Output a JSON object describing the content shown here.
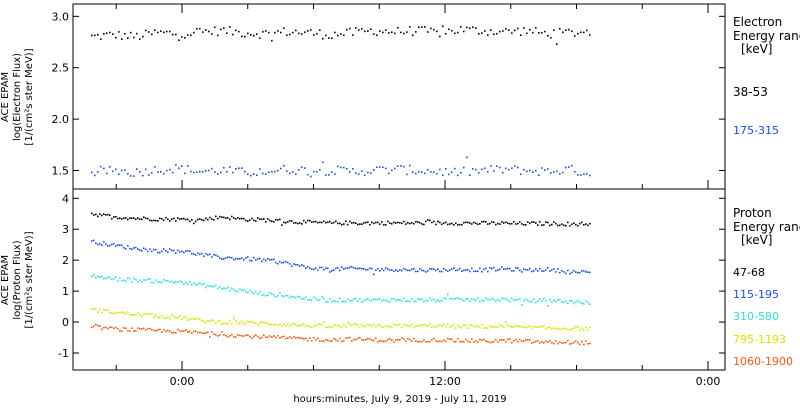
{
  "chart_data": [
    {
      "type": "scatter",
      "panel": "top",
      "instrument_label": "ACE EPAM",
      "ylabel": "log(Electron Flux)",
      "yunits": "[1/(cm²s ster MeV)]",
      "ylim": [
        1.32,
        3.12
      ],
      "yticks": [
        {
          "value": 1.5,
          "label": "1.5"
        },
        {
          "value": 2.0,
          "label": "2.0"
        },
        {
          "value": 2.5,
          "label": "2.5"
        },
        {
          "value": 3.0,
          "label": "3.0"
        }
      ],
      "legend_title": [
        "Electron",
        "Energy range",
        "[keV]"
      ],
      "series": [
        {
          "name": "38-53",
          "color": "#000000",
          "values_approx": [
            2.8,
            2.82,
            2.8,
            2.84,
            2.83,
            2.85,
            2.86,
            2.84,
            2.83,
            2.85,
            2.84,
            2.82,
            2.84,
            2.86,
            2.85,
            2.86,
            2.84,
            2.87,
            2.86,
            2.85,
            2.86,
            2.83,
            2.84,
            2.85
          ]
        },
        {
          "name": "175-315",
          "color": "#1a4fd6",
          "values_approx": [
            1.49,
            1.5,
            1.48,
            1.51,
            1.52,
            1.49,
            1.5,
            1.48,
            1.49,
            1.51,
            1.5,
            1.5,
            1.49,
            1.5,
            1.51,
            1.5,
            1.49,
            1.48,
            1.5,
            1.51,
            1.5,
            1.49,
            1.51,
            1.47
          ]
        }
      ]
    },
    {
      "type": "scatter",
      "panel": "bottom",
      "instrument_label": "ACE EPAM",
      "ylabel": "log(Proton Flux)",
      "yunits": "[1/(cm²s ster MeV)]",
      "ylim": [
        -1.55,
        4.3
      ],
      "yticks": [
        {
          "value": -1,
          "label": "-1"
        },
        {
          "value": 0,
          "label": "0"
        },
        {
          "value": 1,
          "label": "1"
        },
        {
          "value": 2,
          "label": "2"
        },
        {
          "value": 3,
          "label": "3"
        },
        {
          "value": 4,
          "label": "4"
        }
      ],
      "legend_title": [
        "Proton",
        "Energy range",
        "[keV]"
      ],
      "series": [
        {
          "name": "47-68",
          "color": "#000000",
          "values_approx": [
            3.5,
            3.4,
            3.35,
            3.33,
            3.32,
            3.3,
            3.4,
            3.32,
            3.3,
            3.25,
            3.22,
            3.2,
            3.2,
            3.2,
            3.2,
            3.2,
            3.2,
            3.2,
            3.19,
            3.19,
            3.18,
            3.18,
            3.17,
            3.17
          ]
        },
        {
          "name": "115-195",
          "color": "#1a4fd6",
          "values_approx": [
            2.6,
            2.48,
            2.38,
            2.3,
            2.32,
            2.18,
            2.08,
            2.05,
            2.0,
            1.9,
            1.75,
            1.7,
            1.73,
            1.7,
            1.7,
            1.68,
            1.68,
            1.7,
            1.68,
            1.72,
            1.67,
            1.7,
            1.62,
            1.6
          ]
        },
        {
          "name": "310-580",
          "color": "#2ed8d8",
          "values_approx": [
            1.5,
            1.4,
            1.35,
            1.33,
            1.3,
            1.2,
            1.1,
            1.0,
            0.9,
            0.85,
            0.75,
            0.7,
            0.72,
            0.7,
            0.72,
            0.7,
            0.71,
            0.72,
            0.72,
            0.73,
            0.68,
            0.7,
            0.66,
            0.62
          ]
        },
        {
          "name": "795-1193",
          "color": "#d8e000",
          "values_approx": [
            0.4,
            0.32,
            0.25,
            0.2,
            0.15,
            0.05,
            0.0,
            -0.02,
            -0.05,
            -0.08,
            -0.12,
            -0.15,
            -0.12,
            -0.14,
            -0.12,
            -0.13,
            -0.12,
            -0.15,
            -0.15,
            -0.15,
            -0.18,
            -0.2,
            -0.2,
            -0.22
          ]
        },
        {
          "name": "1060-1900",
          "color": "#e85a14",
          "values_approx": [
            -0.15,
            -0.22,
            -0.25,
            -0.28,
            -0.3,
            -0.35,
            -0.4,
            -0.45,
            -0.48,
            -0.52,
            -0.55,
            -0.58,
            -0.55,
            -0.58,
            -0.6,
            -0.58,
            -0.58,
            -0.6,
            -0.62,
            -0.6,
            -0.62,
            -0.66,
            -0.65,
            -0.68
          ]
        }
      ]
    }
  ],
  "x_axis": {
    "tick_labels": [
      "0:00",
      "12:00",
      "0:00"
    ],
    "xlabel": "hours:minutes, July  9, 2019 - July 11, 2019"
  }
}
